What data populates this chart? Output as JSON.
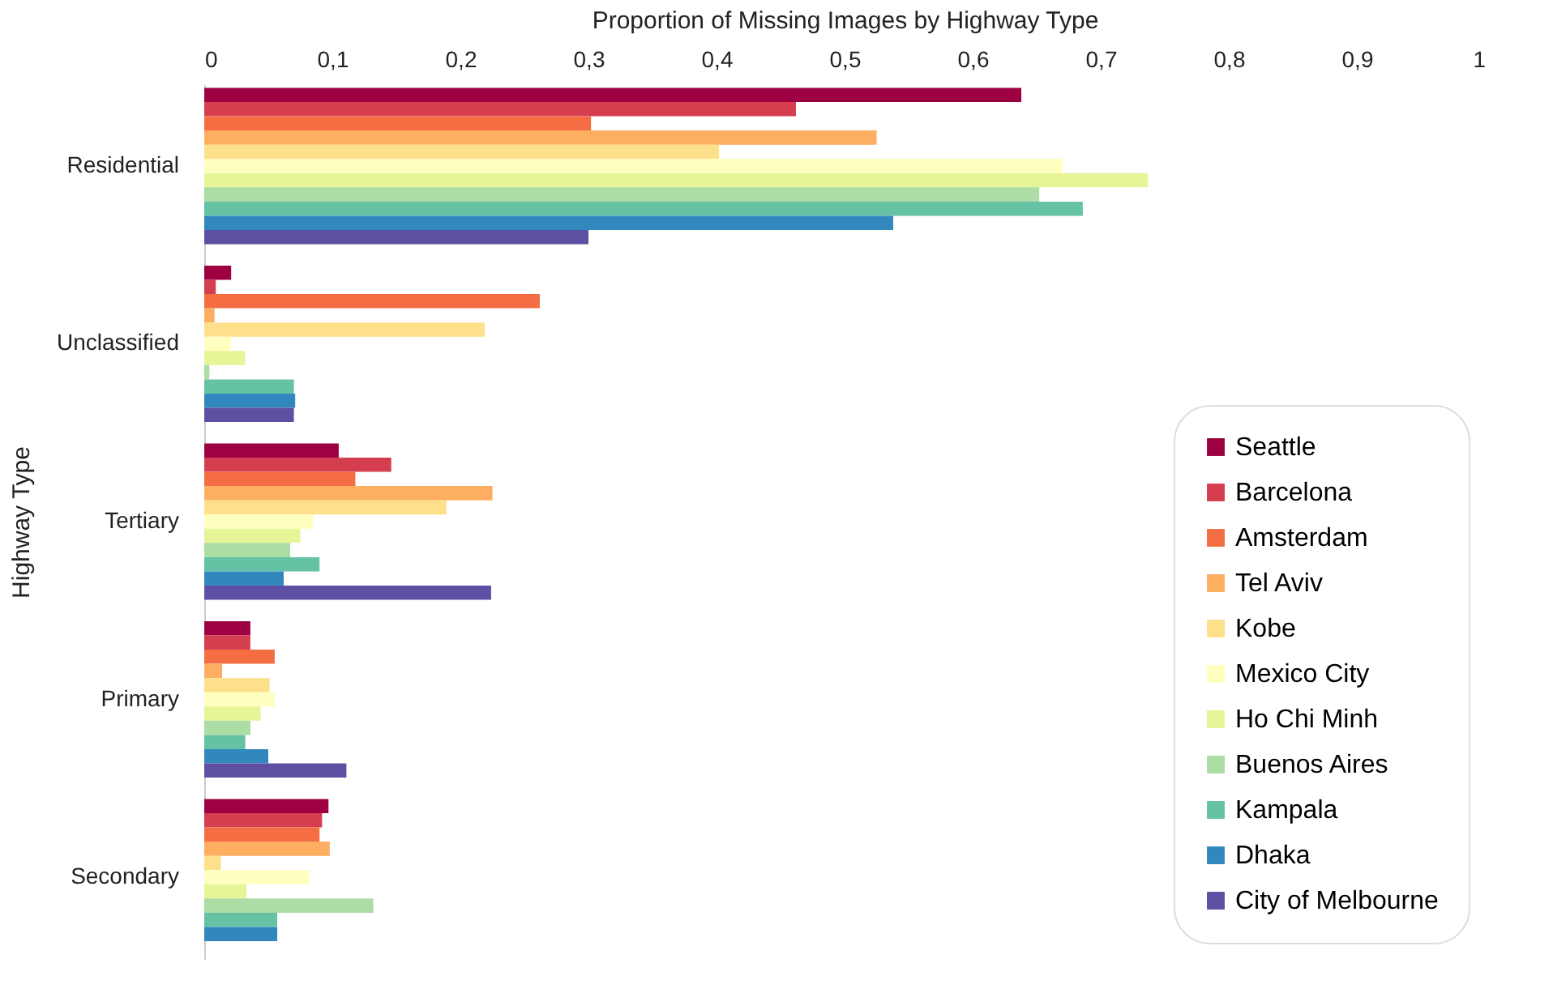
{
  "chart_data": {
    "type": "bar",
    "orientation": "horizontal",
    "xlabel": "Proportion of Missing Images by Highway Type",
    "ylabel": "Highway Type",
    "categories": [
      "Residential",
      "Unclassified",
      "Tertiary",
      "Primary",
      "Secondary"
    ],
    "xlim": [
      0,
      1
    ],
    "xticks": [
      0,
      {
        "value": 0.1,
        "label": "0,1"
      },
      {
        "value": 0.2,
        "label": "0,2"
      },
      {
        "value": 0.3,
        "label": "0,3"
      },
      {
        "value": 0.4,
        "label": "0,4"
      },
      {
        "value": 0.5,
        "label": "0,5"
      },
      {
        "value": 0.6,
        "label": "0,6"
      },
      {
        "value": 0.7,
        "label": "0,7"
      },
      {
        "value": 0.8,
        "label": "0,8"
      },
      {
        "value": 0.9,
        "label": "0,9"
      },
      1
    ],
    "grid": false,
    "legend": "bottom right",
    "series": [
      {
        "name": "Seattle",
        "color": "#9e0142",
        "values": [
          0.638,
          0.021,
          0.105,
          0.036,
          0.097
        ]
      },
      {
        "name": "Barcelona",
        "color": "#d53e4f",
        "values": [
          0.462,
          0.009,
          0.146,
          0.036,
          0.092
        ]
      },
      {
        "name": "Amsterdam",
        "color": "#f46d43",
        "values": [
          0.302,
          0.262,
          0.118,
          0.055,
          0.09
        ]
      },
      {
        "name": "Tel Aviv",
        "color": "#fdae61",
        "values": [
          0.525,
          0.008,
          0.225,
          0.014,
          0.098
        ]
      },
      {
        "name": "Kobe",
        "color": "#fee08b",
        "values": [
          0.402,
          0.219,
          0.189,
          0.051,
          0.013
        ]
      },
      {
        "name": "Mexico City",
        "color": "#ffffbf",
        "values": [
          0.67,
          0.021,
          0.085,
          0.055,
          0.082
        ]
      },
      {
        "name": "Ho Chi Minh",
        "color": "#e6f598",
        "values": [
          0.737,
          0.032,
          0.075,
          0.044,
          0.033
        ]
      },
      {
        "name": "Buenos Aires",
        "color": "#abdda4",
        "values": [
          0.652,
          0.004,
          0.067,
          0.036,
          0.132
        ]
      },
      {
        "name": "Kampala",
        "color": "#66c2a5",
        "values": [
          0.686,
          0.07,
          0.09,
          0.032,
          0.057
        ]
      },
      {
        "name": "Dhaka",
        "color": "#3288bd",
        "values": [
          0.538,
          0.071,
          0.062,
          0.05,
          0.057
        ]
      },
      {
        "name": "City of Melbourne",
        "color": "#5e4fa2",
        "values": [
          0.3,
          0.07,
          0.224,
          0.111,
          null
        ]
      }
    ]
  }
}
